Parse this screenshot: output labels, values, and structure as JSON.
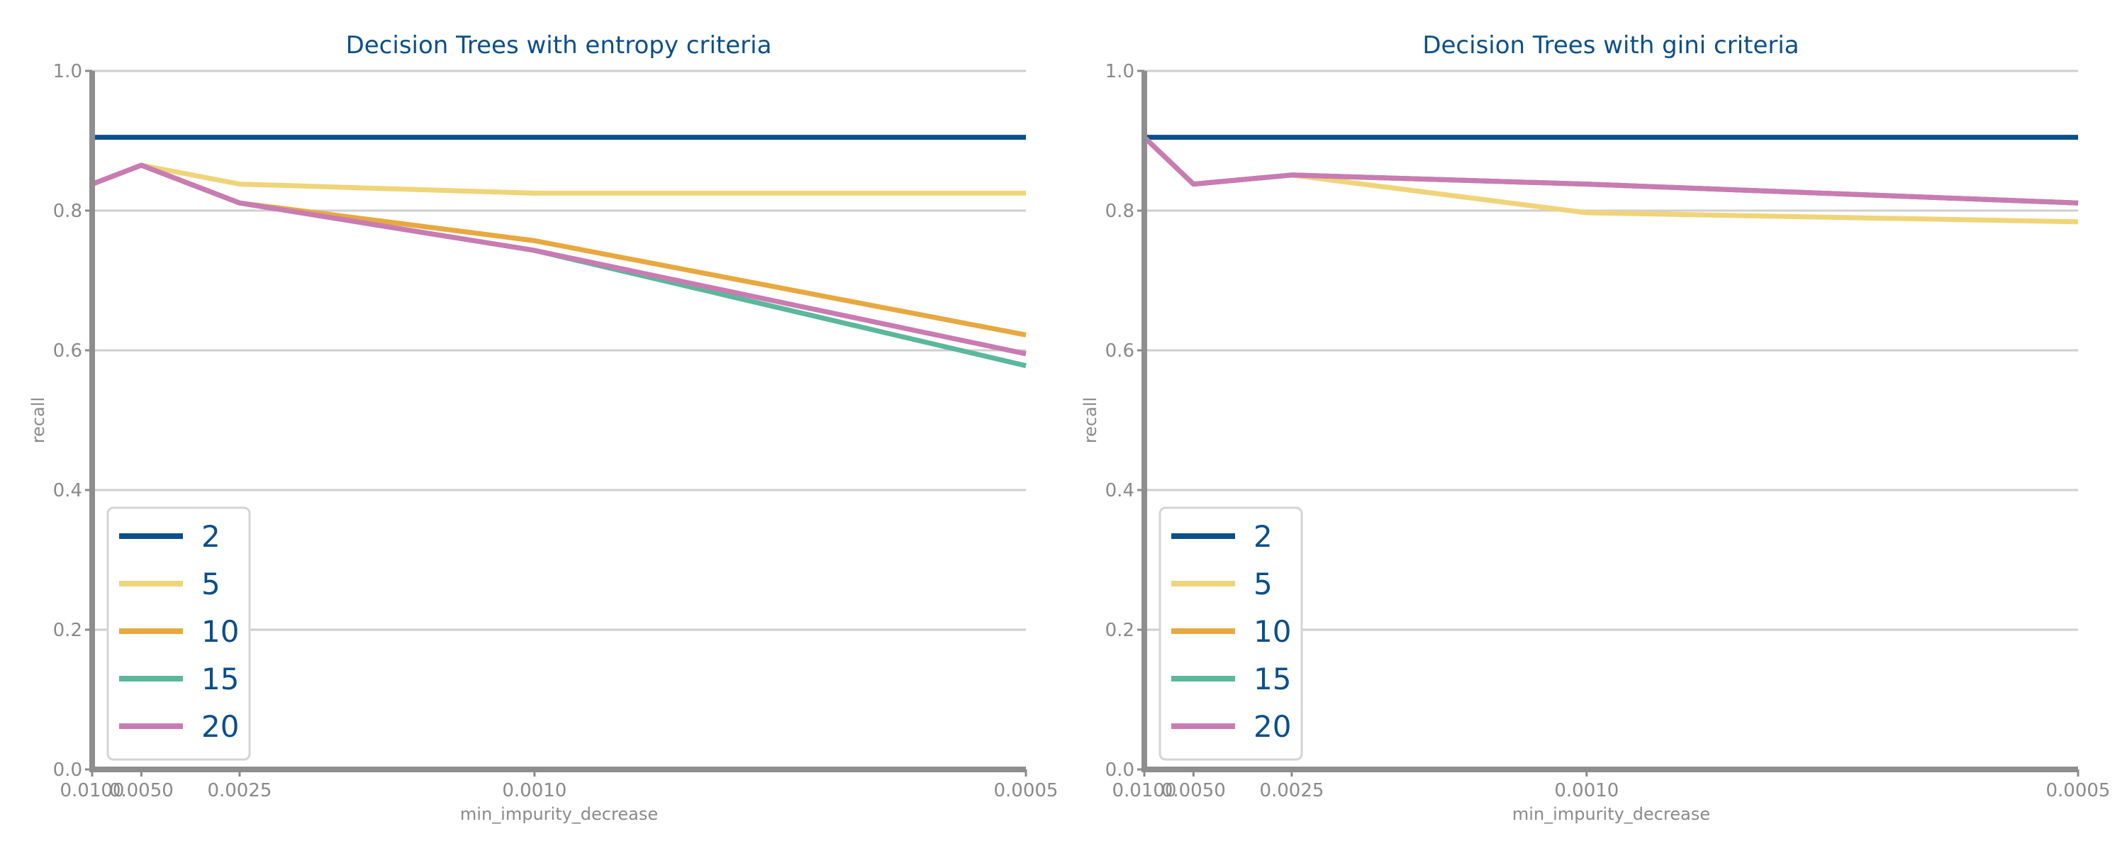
{
  "chart_data": [
    {
      "type": "line",
      "title": "Decision Trees with entropy criteria",
      "xlabel": "min_impurity_decrease",
      "ylabel": "recall",
      "x": [
        0.01,
        0.005,
        0.0025,
        0.001,
        0.0005
      ],
      "x_tick_labels": [
        "0.0100",
        "0.0050",
        "0.0025",
        "0.0010",
        "0.0005"
      ],
      "x_scale": "reciprocal",
      "ylim": [
        0,
        1.0
      ],
      "y_ticks": [
        0.0,
        0.2,
        0.4,
        0.6,
        0.8,
        1.0
      ],
      "y_tick_labels": [
        "0.0",
        "0.2",
        "0.4",
        "0.6",
        "0.8",
        "1.0"
      ],
      "grid": "horizontal",
      "legend": "bottom-left",
      "series": [
        {
          "name": "2",
          "color": "#0b4f8a",
          "values": [
            0.905,
            0.905,
            0.905,
            0.905,
            0.905
          ]
        },
        {
          "name": "5",
          "color": "#f0d47a",
          "values": [
            0.838,
            0.865,
            0.838,
            0.825,
            0.825
          ]
        },
        {
          "name": "10",
          "color": "#e8a840",
          "values": [
            0.838,
            0.865,
            0.811,
            0.757,
            0.622
          ]
        },
        {
          "name": "15",
          "color": "#5bb89a",
          "values": [
            0.838,
            0.865,
            0.811,
            0.743,
            0.578
          ]
        },
        {
          "name": "20",
          "color": "#c97bb2",
          "values": [
            0.838,
            0.865,
            0.811,
            0.743,
            0.595
          ]
        }
      ]
    },
    {
      "type": "line",
      "title": "Decision Trees with gini criteria",
      "xlabel": "min_impurity_decrease",
      "ylabel": "recall",
      "x": [
        0.01,
        0.005,
        0.0025,
        0.001,
        0.0005
      ],
      "x_tick_labels": [
        "0.0100",
        "0.0050",
        "0.0025",
        "0.0010",
        "0.0005"
      ],
      "x_scale": "reciprocal",
      "ylim": [
        0,
        1.0
      ],
      "y_ticks": [
        0.0,
        0.2,
        0.4,
        0.6,
        0.8,
        1.0
      ],
      "y_tick_labels": [
        "0.0",
        "0.2",
        "0.4",
        "0.6",
        "0.8",
        "1.0"
      ],
      "grid": "horizontal",
      "legend": "bottom-left",
      "series": [
        {
          "name": "2",
          "color": "#0b4f8a",
          "values": [
            0.905,
            0.905,
            0.905,
            0.905,
            0.905
          ]
        },
        {
          "name": "5",
          "color": "#f0d47a",
          "values": [
            0.905,
            0.838,
            0.851,
            0.797,
            0.784
          ]
        },
        {
          "name": "10",
          "color": "#e8a840",
          "values": [
            0.905,
            0.838,
            0.851,
            0.838,
            0.811
          ]
        },
        {
          "name": "15",
          "color": "#5bb89a",
          "values": [
            0.905,
            0.838,
            0.851,
            0.838,
            0.811
          ]
        },
        {
          "name": "20",
          "color": "#c97bb2",
          "values": [
            0.905,
            0.838,
            0.851,
            0.838,
            0.811
          ]
        }
      ]
    }
  ]
}
